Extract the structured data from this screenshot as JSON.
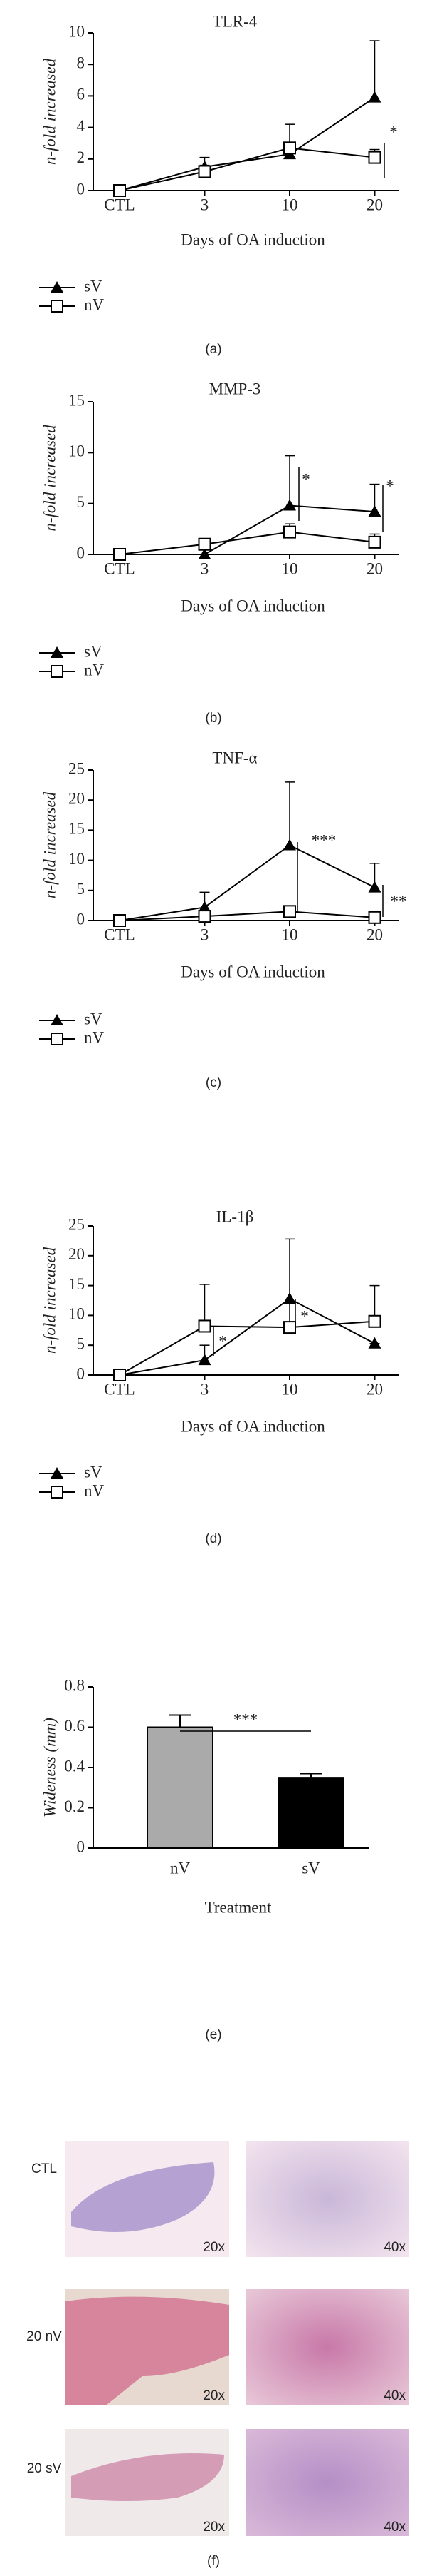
{
  "chart_data": [
    {
      "type": "line",
      "title": "TLR-4",
      "panel_label": "(a)",
      "ylabel": "n-fold increased",
      "xlabel": "Days of OA induction",
      "categories": [
        "CTL",
        "3",
        "10",
        "20"
      ],
      "ylim": [
        0,
        10
      ],
      "yticks": [
        0,
        2,
        4,
        6,
        8,
        10
      ],
      "series": [
        {
          "name": "sV",
          "color": "#000000",
          "marker": "triangle",
          "values": [
            0,
            1.5,
            2.3,
            5.9
          ],
          "errors": [
            0,
            0.6,
            0.4,
            3.6
          ]
        },
        {
          "name": "nV",
          "color": "#000000",
          "marker": "square",
          "values": [
            0,
            1.2,
            2.7,
            2.1
          ],
          "errors": [
            0,
            0.4,
            1.5,
            0.5
          ]
        }
      ],
      "annotations": [
        "*"
      ]
    },
    {
      "type": "line",
      "title": "MMP-3",
      "panel_label": "(b)",
      "ylabel": "n-fold increased",
      "xlabel": "Days of OA induction",
      "categories": [
        "CTL",
        "3",
        "10",
        "20"
      ],
      "ylim": [
        0,
        15
      ],
      "yticks": [
        0,
        5,
        10,
        15
      ],
      "series": [
        {
          "name": "sV",
          "color": "#000000",
          "marker": "triangle",
          "values": [
            0,
            0,
            4.8,
            4.2
          ],
          "errors": [
            0,
            0,
            4.9,
            2.7
          ]
        },
        {
          "name": "nV",
          "color": "#000000",
          "marker": "square",
          "values": [
            0,
            1,
            2.2,
            1.2
          ],
          "errors": [
            0,
            0,
            0.8,
            0.8
          ]
        }
      ],
      "annotations": [
        "*",
        "*"
      ]
    },
    {
      "type": "line",
      "title": "TNF-α",
      "panel_label": "(c)",
      "ylabel": "n-fold increased",
      "xlabel": "Days of OA induction",
      "categories": [
        "CTL",
        "3",
        "10",
        "20"
      ],
      "ylim": [
        0,
        25
      ],
      "yticks": [
        0,
        5,
        10,
        15,
        20,
        25
      ],
      "series": [
        {
          "name": "sV",
          "color": "#000000",
          "marker": "triangle",
          "values": [
            0,
            2.2,
            12.5,
            5.5
          ],
          "errors": [
            0,
            2.5,
            10.5,
            4
          ]
        },
        {
          "name": "nV",
          "color": "#000000",
          "marker": "square",
          "values": [
            0,
            0.7,
            1.5,
            0.5
          ],
          "errors": [
            0,
            0.5,
            0.5,
            0.3
          ]
        }
      ],
      "annotations": [
        "***",
        "**"
      ]
    },
    {
      "type": "line",
      "title": "IL-1β",
      "panel_label": "(d)",
      "ylabel": "n-fold increased",
      "xlabel": "Days of OA induction",
      "categories": [
        "CTL",
        "3",
        "10",
        "20"
      ],
      "ylim": [
        0,
        25
      ],
      "yticks": [
        0,
        5,
        10,
        15,
        20,
        25
      ],
      "series": [
        {
          "name": "sV",
          "color": "#000000",
          "marker": "triangle",
          "values": [
            0,
            2.5,
            12.8,
            5.3
          ],
          "errors": [
            0,
            2.5,
            10,
            0
          ]
        },
        {
          "name": "nV",
          "color": "#000000",
          "marker": "square",
          "values": [
            0,
            8.2,
            8,
            9
          ],
          "errors": [
            0,
            7,
            4,
            6
          ]
        }
      ],
      "annotations": [
        "*",
        "*"
      ]
    },
    {
      "type": "bar",
      "panel_label": "(e)",
      "ylabel": "Wideness (mm)",
      "xlabel": "Treatment",
      "categories": [
        "nV",
        "sV"
      ],
      "values": [
        0.6,
        0.35
      ],
      "errors": [
        0.06,
        0.02
      ],
      "colors": [
        "#aaaaaa",
        "#000000"
      ],
      "ylim": [
        0,
        0.8
      ],
      "yticks": [
        0,
        0.2,
        0.4,
        0.6,
        0.8
      ],
      "annotations": [
        "***"
      ]
    }
  ],
  "figure_f": {
    "row_labels": [
      "CTL",
      "20 nV",
      "20 sV"
    ],
    "magnifications": [
      "20x",
      "40x"
    ],
    "panel_label": "(f)"
  }
}
